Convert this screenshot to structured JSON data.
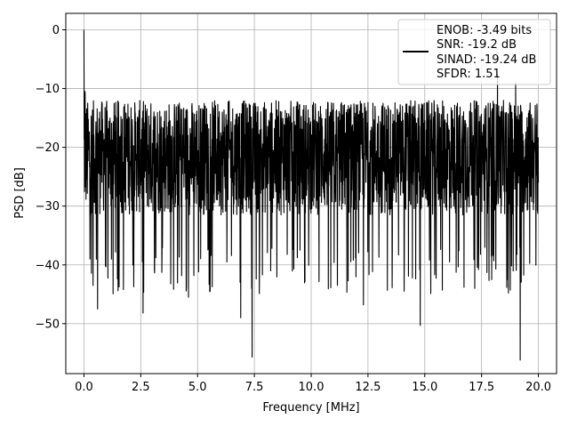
{
  "chart_data": {
    "type": "line",
    "title": "",
    "xlabel": "Frequency [MHz]",
    "ylabel": "PSD [dB]",
    "xlim": [
      -0.8,
      20.8
    ],
    "ylim": [
      -58.5,
      2.8
    ],
    "xticks": [
      0.0,
      2.5,
      5.0,
      7.5,
      10.0,
      12.5,
      15.0,
      17.5,
      20.0
    ],
    "xtick_labels": [
      "0.0",
      "2.5",
      "5.0",
      "7.5",
      "10.0",
      "12.5",
      "15.0",
      "17.5",
      "20.0"
    ],
    "yticks": [
      0,
      -10,
      -20,
      -30,
      -40,
      -50
    ],
    "ytick_labels": [
      "0",
      "−10",
      "−20",
      "−30",
      "−40",
      "−50"
    ],
    "grid": true,
    "legend_position": "top-right",
    "legend_lines": [
      "ENOB: -3.49 bits",
      "SNR: -19.2 dB",
      "SINAD: -19.24 dB",
      "SFDR: 1.51"
    ],
    "series": [
      {
        "color": "#000000",
        "noise_floor_db": [
          -35,
          -12
        ],
        "peaks": [
          {
            "x": 0.0,
            "y": 0.0
          },
          {
            "x": 0.05,
            "y": -10.5
          },
          {
            "x": 0.4,
            "y": -43.5
          },
          {
            "x": 0.6,
            "y": -47.5
          },
          {
            "x": 2.6,
            "y": -48.2
          },
          {
            "x": 4.6,
            "y": -45.5
          },
          {
            "x": 6.9,
            "y": -49.0
          },
          {
            "x": 7.4,
            "y": -55.7
          },
          {
            "x": 12.3,
            "y": -46.8
          },
          {
            "x": 14.8,
            "y": -50.3
          },
          {
            "x": 19.2,
            "y": -56.2
          },
          {
            "x": 18.2,
            "y": -7.5
          },
          {
            "x": 19.0,
            "y": -9.0
          },
          {
            "x": 20.0,
            "y": -26.0
          }
        ]
      }
    ]
  }
}
